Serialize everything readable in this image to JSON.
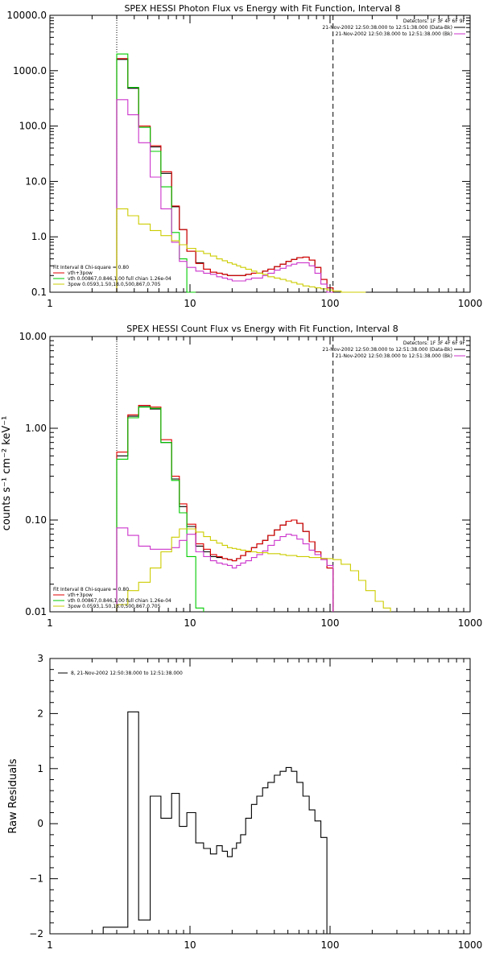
{
  "colors": {
    "data": "#000000",
    "total": "#e00000",
    "thermal": "#00cc00",
    "thermal2": "#cc33cc",
    "powerlaw": "#cccc00"
  },
  "chart_data": [
    {
      "type": "line",
      "title": "SPEX HESSI Photon Flux vs Energy with Fit Function, Interval 8",
      "xscale": "log",
      "yscale": "log",
      "xlim": [
        1,
        1000
      ],
      "ylim": [
        0.1,
        10000
      ],
      "xticks": [
        "1",
        "10",
        "100",
        "1000"
      ],
      "yticks": [
        "0.1",
        "1.0",
        "10.0",
        "100.0",
        "1000.0",
        "10000.0"
      ],
      "vlines": [
        {
          "x": 3,
          "style": "dotted"
        },
        {
          "x": 105,
          "style": "dashed"
        }
      ],
      "legend_topright": [
        "Detectors: 1F 3F 4F 6F 9F",
        "21-Nov-2002 12:50:38.000 to 12:51:38.000 (Data-Bk)",
        "21-Nov-2002 12:50:38.000 to 12:51:38.000 (Bk)"
      ],
      "legend_bottomleft": [
        "Fit Interval 8   Chi-square = 0.80",
        "vth+3pow",
        "vth 0.00867,0.846,1.00  full chian 1.26e-04",
        "3pow 0.0593,1.50,18.0,500,867,0.705"
      ],
      "edges": [
        3,
        3.6,
        4.3,
        5.2,
        6.2,
        7.4,
        8.4,
        9.5,
        11,
        12.5,
        14,
        15.5,
        17,
        18.5,
        20,
        21.5,
        23,
        25,
        27.5,
        30,
        33,
        36,
        40,
        44,
        48.5,
        53,
        58,
        64,
        71,
        78,
        86,
        95,
        105,
        120,
        140,
        160,
        180
      ],
      "series": [
        {
          "key": "data",
          "values": [
            1600,
            480,
            95,
            42,
            14,
            3.5,
            1.35,
            0.55,
            0.34,
            0.26,
            0.23,
            0.22,
            0.21,
            0.2,
            0.2,
            0.2,
            0.2,
            0.21,
            0.22,
            0.22,
            0.24,
            0.26,
            0.29,
            0.32,
            0.36,
            0.39,
            0.42,
            0.43,
            0.38,
            0.28,
            0.17,
            0.12,
            null,
            null,
            null,
            null
          ]
        },
        {
          "key": "total",
          "values": [
            1650,
            500,
            100,
            44,
            15,
            3.6,
            1.35,
            0.55,
            0.33,
            0.26,
            0.23,
            0.22,
            0.21,
            0.2,
            0.2,
            0.2,
            0.2,
            0.21,
            0.22,
            0.22,
            0.24,
            0.26,
            0.29,
            0.32,
            0.36,
            0.39,
            0.42,
            0.43,
            0.38,
            0.28,
            0.17,
            0.12,
            null,
            null,
            null,
            null
          ]
        },
        {
          "key": "thermal",
          "values": [
            2000,
            500,
            95,
            35,
            8,
            1.2,
            0.4,
            0.1,
            null,
            null,
            null,
            null,
            null,
            null,
            null,
            null,
            null,
            null,
            null,
            null,
            null,
            null,
            null,
            null,
            null,
            null,
            null,
            null,
            null,
            null,
            null,
            null,
            null,
            null,
            null,
            null
          ]
        },
        {
          "key": "thermal2",
          "values": [
            300,
            160,
            50,
            12,
            3.2,
            0.8,
            0.36,
            0.28,
            0.24,
            0.22,
            0.21,
            0.19,
            0.18,
            0.17,
            0.16,
            0.16,
            0.16,
            0.17,
            0.18,
            0.18,
            0.2,
            0.22,
            0.25,
            0.27,
            0.3,
            0.32,
            0.34,
            0.34,
            0.3,
            0.22,
            0.14,
            0.1,
            null,
            null,
            null,
            null
          ]
        },
        {
          "key": "powerlaw",
          "values": [
            3.2,
            2.4,
            1.7,
            1.3,
            1.05,
            0.85,
            0.72,
            0.62,
            0.55,
            0.5,
            0.45,
            0.4,
            0.37,
            0.34,
            0.32,
            0.3,
            0.28,
            0.26,
            0.24,
            0.22,
            0.21,
            0.19,
            0.18,
            0.17,
            0.16,
            0.15,
            0.14,
            0.13,
            0.125,
            0.12,
            0.115,
            0.11,
            0.105,
            0.1,
            0.1,
            0.1
          ]
        }
      ]
    },
    {
      "type": "line",
      "title": "SPEX HESSI Count Flux vs Energy with Fit Function, Interval 8",
      "xscale": "log",
      "yscale": "log",
      "xlim": [
        1,
        1000
      ],
      "ylim": [
        0.01,
        10
      ],
      "xticks": [
        "1",
        "10",
        "100",
        "1000"
      ],
      "yticks": [
        "0.01",
        "0.10",
        "1.00",
        "10.00"
      ],
      "ylabel": "counts s⁻¹ cm⁻² keV⁻¹",
      "vlines": [
        {
          "x": 3,
          "style": "dotted"
        },
        {
          "x": 105,
          "style": "dashed"
        }
      ],
      "legend_topright": [
        "Detectors: 1F 3F 4F 6F 9F",
        "21-Nov-2002 12:50:38.000 to 12:51:38.000 (Data-Bk)",
        "21-Nov-2002 12:50:38.000 to 12:51:38.000 (Bk)"
      ],
      "legend_bottomleft": [
        "Fit Interval 8   Chi-square = 0.80",
        "vth+3pow",
        "vth 0.00867,0.846,1.00  full chian 1.26e-04",
        "3pow 0.0593,1.50,18.0,500,867,0.705"
      ],
      "edges": [
        3,
        3.6,
        4.3,
        5.2,
        6.2,
        7.4,
        8.4,
        9.5,
        11,
        12.5,
        14,
        15.5,
        17,
        18.5,
        20,
        21.5,
        23,
        25,
        27.5,
        30,
        33,
        36,
        40,
        44,
        48.5,
        53,
        58,
        64,
        71,
        78,
        86,
        95,
        105,
        120,
        140,
        160,
        180,
        210,
        240,
        270
      ],
      "series": [
        {
          "key": "data",
          "values": [
            0.5,
            1.35,
            1.72,
            1.62,
            0.7,
            0.28,
            0.14,
            0.085,
            0.052,
            0.045,
            0.04,
            0.039,
            0.038,
            0.037,
            0.036,
            0.038,
            0.041,
            0.045,
            0.05,
            0.055,
            0.06,
            0.068,
            0.078,
            0.088,
            0.097,
            0.1,
            0.092,
            0.075,
            0.058,
            0.045,
            0.038,
            0.03,
            null,
            null,
            null,
            null,
            null,
            null,
            null
          ]
        },
        {
          "key": "total",
          "values": [
            0.55,
            1.4,
            1.78,
            1.7,
            0.75,
            0.3,
            0.15,
            0.09,
            0.055,
            0.048,
            0.042,
            0.04,
            0.038,
            0.037,
            0.036,
            0.038,
            0.041,
            0.045,
            0.05,
            0.055,
            0.06,
            0.068,
            0.078,
            0.088,
            0.097,
            0.1,
            0.092,
            0.075,
            0.058,
            0.045,
            0.038,
            0.03,
            null,
            null,
            null,
            null,
            null,
            null,
            null
          ]
        },
        {
          "key": "thermal",
          "values": [
            0.46,
            1.3,
            1.7,
            1.65,
            0.7,
            0.27,
            0.12,
            0.04,
            0.011,
            null,
            null,
            null,
            null,
            null,
            null,
            null,
            null,
            null,
            null,
            null,
            null,
            null,
            null,
            null,
            null,
            null,
            null,
            null,
            null,
            null,
            null,
            null,
            null,
            null,
            null,
            null,
            null,
            null,
            null
          ]
        },
        {
          "key": "thermal2",
          "values": [
            0.082,
            0.068,
            0.052,
            0.048,
            0.048,
            0.05,
            0.06,
            0.07,
            0.045,
            0.04,
            0.036,
            0.034,
            0.033,
            0.032,
            0.03,
            0.032,
            0.034,
            0.036,
            0.039,
            0.042,
            0.046,
            0.053,
            0.06,
            0.066,
            0.07,
            0.068,
            0.062,
            0.055,
            0.047,
            0.042,
            0.037,
            0.032,
            null,
            null,
            null,
            null,
            null,
            null,
            null
          ]
        },
        {
          "key": "powerlaw",
          "values": [
            0.012,
            0.017,
            0.021,
            0.03,
            0.045,
            0.065,
            0.08,
            0.08,
            0.074,
            0.066,
            0.06,
            0.056,
            0.053,
            0.05,
            0.049,
            0.048,
            0.047,
            0.046,
            0.045,
            0.044,
            0.044,
            0.043,
            0.043,
            0.042,
            0.041,
            0.041,
            0.04,
            0.04,
            0.039,
            0.039,
            0.038,
            0.038,
            0.037,
            0.033,
            0.028,
            0.022,
            0.017,
            0.013,
            0.011
          ]
        }
      ]
    },
    {
      "type": "line",
      "xscale": "log",
      "yscale": "linear",
      "xlim": [
        1,
        1000
      ],
      "ylim": [
        -2,
        3
      ],
      "xticks": [
        "1",
        "10",
        "100",
        "1000"
      ],
      "yticks": [
        "−2",
        "−1",
        "0",
        "1",
        "2",
        "3"
      ],
      "ylabel": "Raw Residuals",
      "legend": "8, 21-Nov-2002 12:50:38.000 to 12:51:38.000",
      "edges": [
        2.4,
        3,
        3.6,
        4.3,
        5.2,
        6.2,
        7.4,
        8.4,
        9.5,
        11,
        12.5,
        14,
        15.5,
        17,
        18.5,
        20,
        21.5,
        23,
        25,
        27.5,
        30,
        33,
        36,
        40,
        44,
        48.5,
        53,
        58,
        64,
        71,
        78,
        86,
        95,
        105
      ],
      "series": [
        {
          "key": "data",
          "values": [
            -1.88,
            -1.88,
            2.03,
            -1.75,
            0.5,
            0.1,
            0.55,
            -0.05,
            0.2,
            -0.35,
            -0.45,
            -0.55,
            -0.4,
            -0.5,
            -0.6,
            -0.45,
            -0.35,
            -0.2,
            0.1,
            0.35,
            0.5,
            0.65,
            0.75,
            0.88,
            0.95,
            1.02,
            0.95,
            0.75,
            0.5,
            0.25,
            0.05,
            -0.25,
            -2.0
          ]
        }
      ]
    }
  ]
}
